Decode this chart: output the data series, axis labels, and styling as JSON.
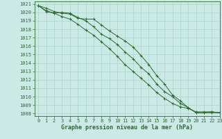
{
  "line1": {
    "x": [
      0,
      1,
      2,
      3,
      4,
      5,
      6,
      7,
      8,
      9,
      10,
      11,
      12,
      13,
      14,
      15,
      16,
      17,
      18,
      19,
      20,
      21,
      22,
      23
    ],
    "y": [
      1020.8,
      1020.5,
      1020.1,
      1019.9,
      1019.8,
      1019.3,
      1019.2,
      1019.2,
      1018.5,
      1017.8,
      1017.2,
      1016.6,
      1015.9,
      1014.9,
      1013.8,
      1012.5,
      1011.5,
      1010.2,
      1009.5,
      1008.7,
      1008.1,
      1008.1,
      1008.1,
      1008.1
    ]
  },
  "line2": {
    "x": [
      0,
      1,
      2,
      3,
      4,
      5,
      6,
      7,
      8,
      9,
      10,
      11,
      12,
      13,
      14,
      15,
      16,
      17,
      18,
      19,
      20,
      21,
      22,
      23
    ],
    "y": [
      1020.8,
      1020.2,
      1019.9,
      1020.0,
      1019.9,
      1019.4,
      1019.0,
      1018.3,
      1017.4,
      1016.9,
      1016.2,
      1015.3,
      1014.5,
      1013.5,
      1012.7,
      1011.5,
      1010.6,
      1010.0,
      1009.2,
      1008.7,
      1008.1,
      1008.1,
      1008.2,
      1008.1
    ]
  },
  "line3": {
    "x": [
      0,
      1,
      2,
      3,
      4,
      5,
      6,
      7,
      8,
      9,
      10,
      11,
      12,
      13,
      14,
      15,
      16,
      17,
      18,
      19,
      20,
      21,
      22,
      23
    ],
    "y": [
      1020.8,
      1020.1,
      1019.9,
      1019.5,
      1019.2,
      1018.6,
      1017.9,
      1017.3,
      1016.5,
      1015.7,
      1014.8,
      1013.8,
      1013.0,
      1012.2,
      1011.4,
      1010.5,
      1009.8,
      1009.2,
      1008.8,
      1008.6,
      1008.2,
      1008.2,
      1008.2,
      1008.1
    ]
  },
  "xlabel": "Graphe pression niveau de la mer (hPa)",
  "xlim": [
    -0.5,
    23
  ],
  "ylim": [
    1007.7,
    1021.3
  ],
  "yticks": [
    1008,
    1009,
    1010,
    1011,
    1012,
    1013,
    1014,
    1015,
    1016,
    1017,
    1018,
    1019,
    1020,
    1021
  ],
  "xticks": [
    0,
    1,
    2,
    3,
    4,
    5,
    6,
    7,
    8,
    9,
    10,
    11,
    12,
    13,
    14,
    15,
    16,
    17,
    18,
    19,
    20,
    21,
    22,
    23
  ],
  "background_color": "#cceae5",
  "grid_color": "#aad4ce",
  "line_color": "#2d6a2d",
  "text_color": "#2d6a2d",
  "tick_fontsize": 5.0,
  "xlabel_fontsize": 6.0
}
